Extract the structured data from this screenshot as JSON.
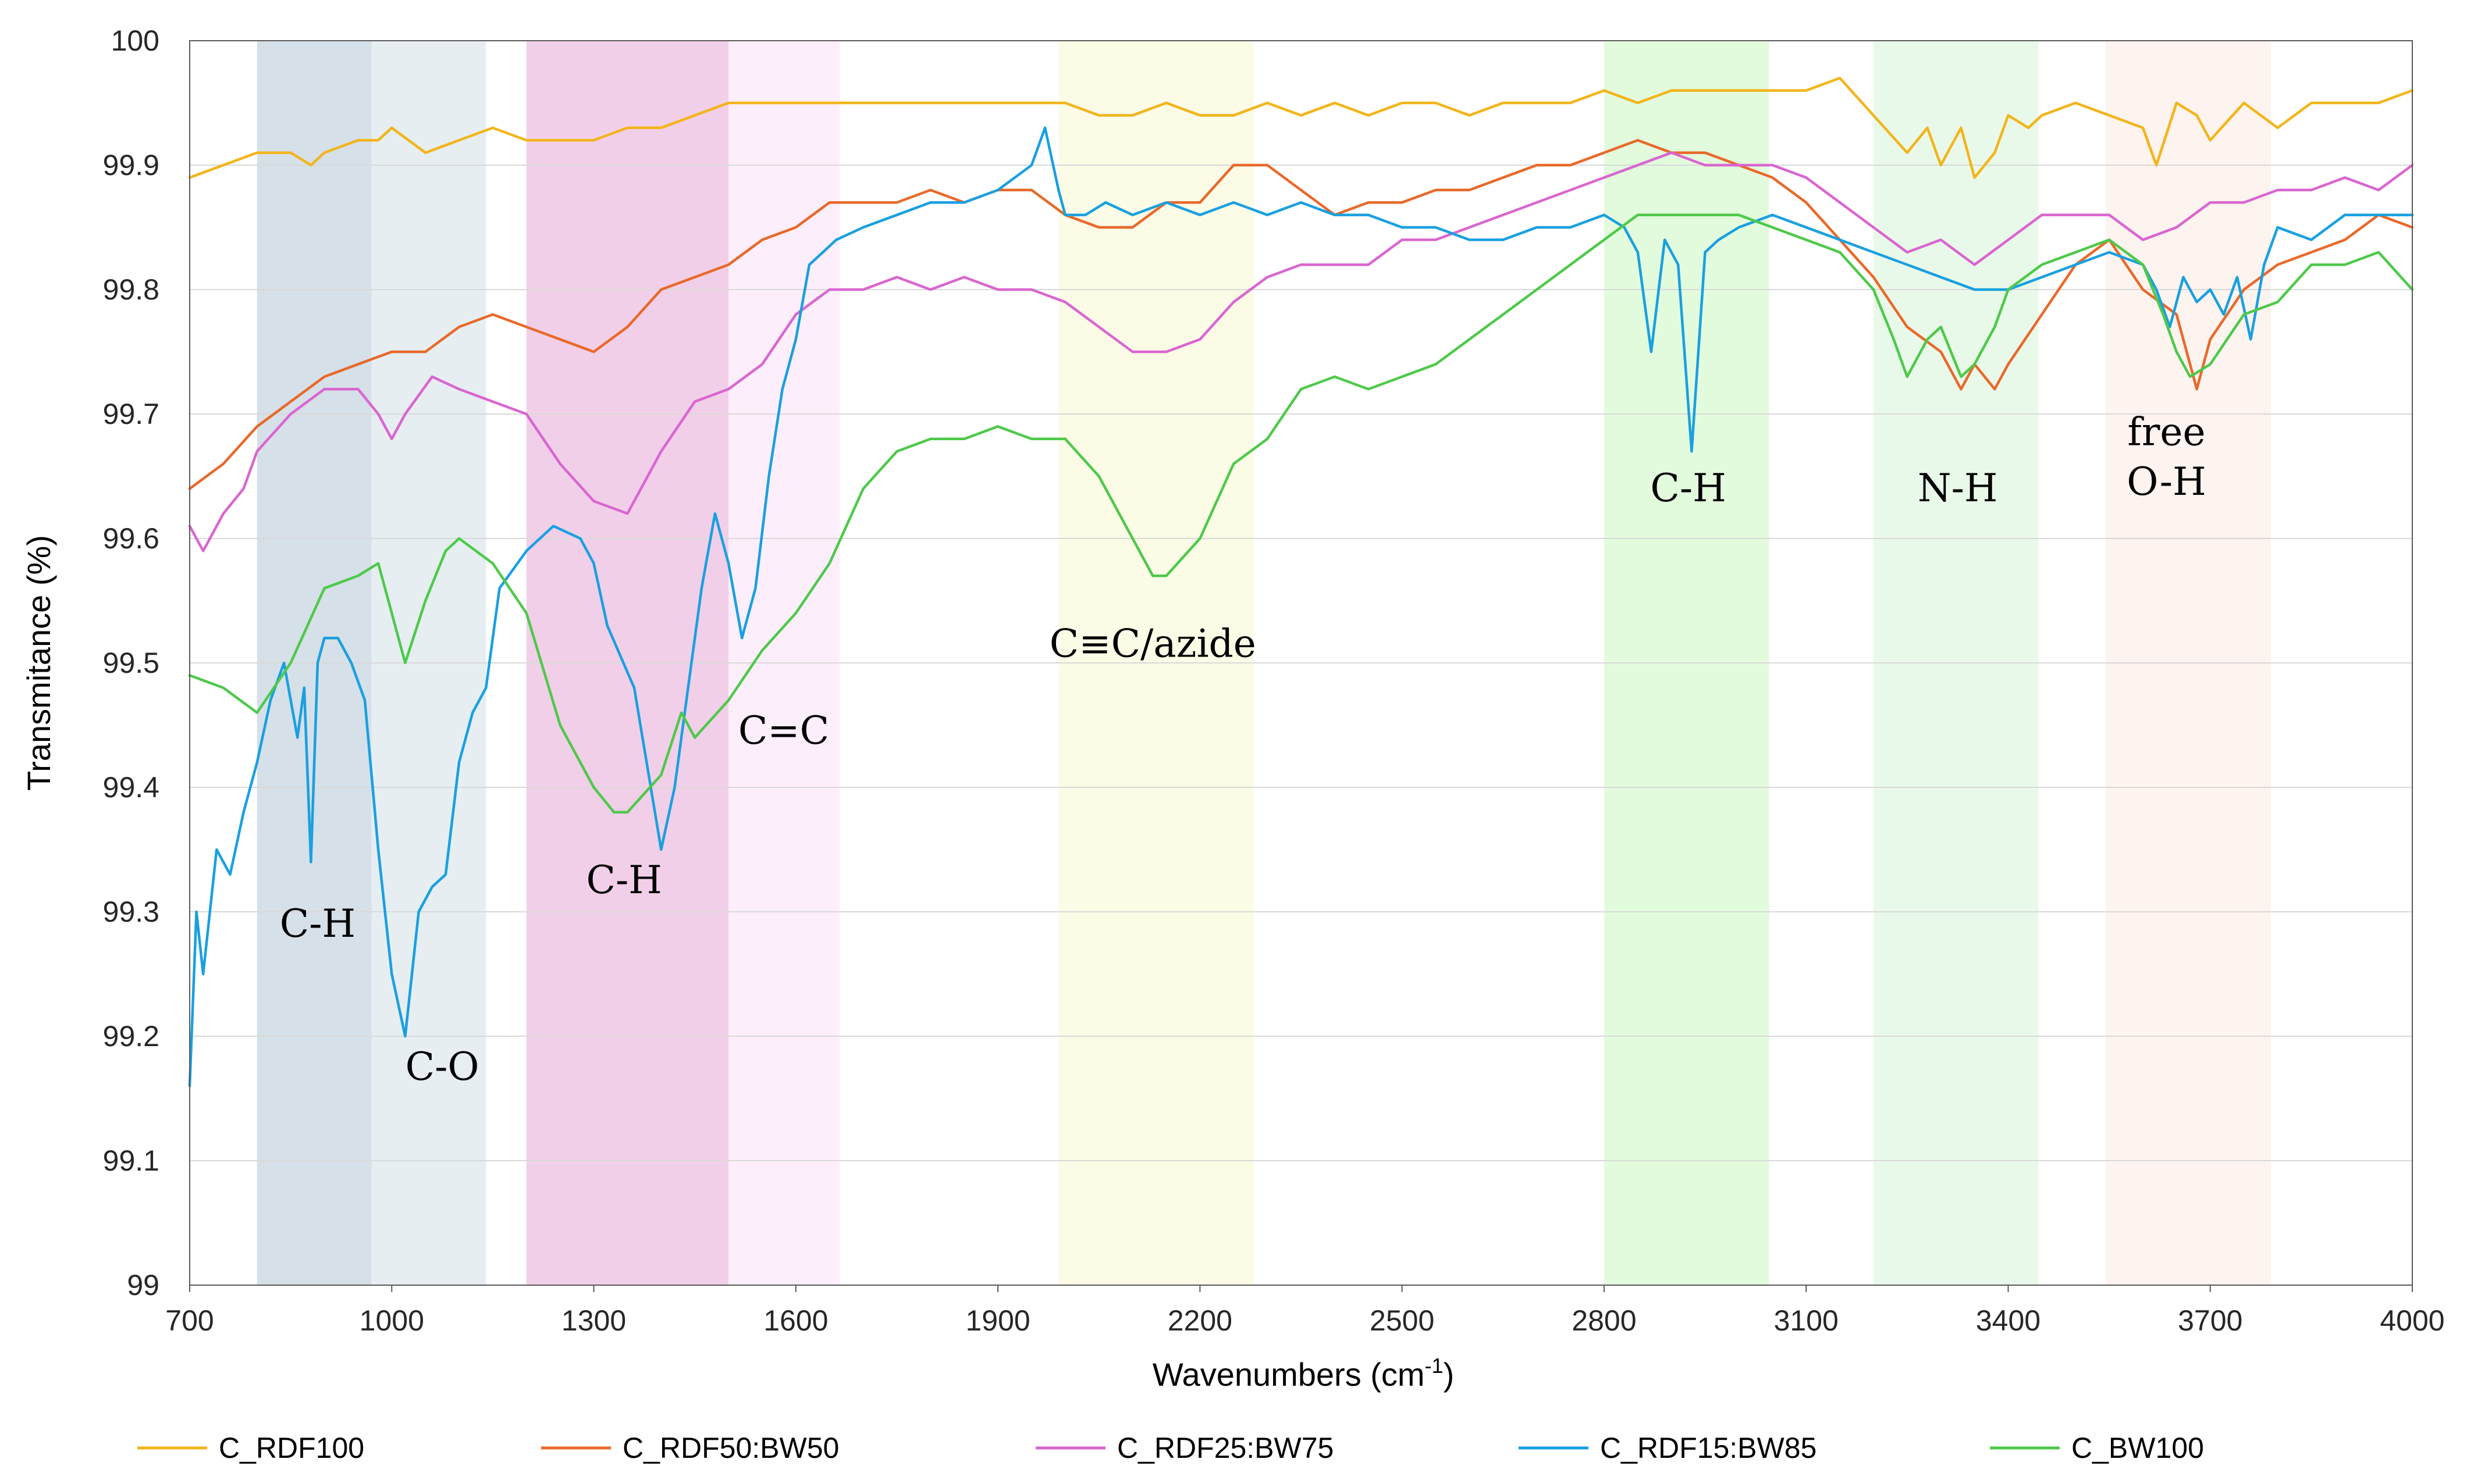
{
  "chart_data": {
    "type": "line",
    "title": "",
    "xlabel": "Wavenumbers (cm",
    "xlabel_sup": "-1",
    "xlabel_close": ")",
    "ylabel": "Transmitance (%)",
    "xlim": [
      700,
      4000
    ],
    "ylim": [
      99,
      100
    ],
    "x_ticks": [
      700,
      1000,
      1300,
      1600,
      1900,
      2200,
      2500,
      2800,
      3100,
      3400,
      3700,
      4000
    ],
    "x_tick_labels": [
      "700",
      "1000",
      "1300",
      "1600",
      "1900",
      "2200",
      "2500",
      "2800",
      "3100",
      "3400",
      "3700",
      "4000"
    ],
    "y_ticks": [
      99,
      99.1,
      99.2,
      99.3,
      99.4,
      99.5,
      99.6,
      99.7,
      99.8,
      99.9,
      100
    ],
    "y_tick_labels": [
      "99",
      "99.1",
      "99.2",
      "99.3",
      "99.4",
      "99.5",
      "99.6",
      "99.7",
      "99.8",
      "99.9",
      "100"
    ],
    "legend_position": "bottom",
    "bands": [
      {
        "x0": 800,
        "x1": 970,
        "color": "#d6e0e8"
      },
      {
        "x0": 970,
        "x1": 1140,
        "color": "#e6eef2"
      },
      {
        "x0": 1200,
        "x1": 1500,
        "color": "#f2cfe8"
      },
      {
        "x0": 1500,
        "x1": 1665,
        "color": "#fdeefb"
      },
      {
        "x0": 1990,
        "x1": 2280,
        "color": "#fbfbe6"
      },
      {
        "x0": 2800,
        "x1": 3045,
        "color": "#e3fbdd"
      },
      {
        "x0": 3200,
        "x1": 3445,
        "color": "#e9f9e9"
      },
      {
        "x0": 3545,
        "x1": 3790,
        "color": "#fdf3ef"
      }
    ],
    "annotations": [
      {
        "text": "C-H",
        "x": 890,
        "y": 99.28
      },
      {
        "text": "C-O",
        "x": 1075,
        "y": 99.165
      },
      {
        "text": "C-H",
        "x": 1345,
        "y": 99.315
      },
      {
        "text": "C=C",
        "x": 1582,
        "y": 99.435
      },
      {
        "text": "C≡C/azide",
        "x": 2130,
        "y": 99.505
      },
      {
        "text": "C-H",
        "x": 2925,
        "y": 99.63
      },
      {
        "text": "N-H",
        "x": 3325,
        "y": 99.63
      },
      {
        "text": "free",
        "x": 3635,
        "y": 99.675
      },
      {
        "text": "O-H",
        "x": 3635,
        "y": 99.635
      }
    ],
    "series": [
      {
        "name": "C_RDF100",
        "color": "#f2b51b",
        "x": [
          700,
          750,
          800,
          850,
          880,
          900,
          950,
          980,
          1000,
          1050,
          1100,
          1150,
          1200,
          1250,
          1300,
          1350,
          1400,
          1450,
          1500,
          1550,
          1600,
          1650,
          1700,
          1750,
          1800,
          1850,
          1900,
          1950,
          2000,
          2050,
          2100,
          2150,
          2200,
          2250,
          2300,
          2350,
          2400,
          2450,
          2500,
          2550,
          2600,
          2650,
          2700,
          2750,
          2800,
          2850,
          2900,
          2950,
          3000,
          3050,
          3100,
          3150,
          3200,
          3250,
          3280,
          3300,
          3330,
          3350,
          3380,
          3400,
          3430,
          3450,
          3500,
          3550,
          3600,
          3620,
          3650,
          3680,
          3700,
          3750,
          3800,
          3850,
          3900,
          3950,
          4000
        ],
        "values": [
          99.89,
          99.9,
          99.91,
          99.91,
          99.9,
          99.91,
          99.92,
          99.92,
          99.93,
          99.91,
          99.92,
          99.93,
          99.92,
          99.92,
          99.92,
          99.93,
          99.93,
          99.94,
          99.95,
          99.95,
          99.95,
          99.95,
          99.95,
          99.95,
          99.95,
          99.95,
          99.95,
          99.95,
          99.95,
          99.94,
          99.94,
          99.95,
          99.94,
          99.94,
          99.95,
          99.94,
          99.95,
          99.94,
          99.95,
          99.95,
          99.94,
          99.95,
          99.95,
          99.95,
          99.96,
          99.95,
          99.96,
          99.96,
          99.96,
          99.96,
          99.96,
          99.97,
          99.94,
          99.91,
          99.93,
          99.9,
          99.93,
          99.89,
          99.91,
          99.94,
          99.93,
          99.94,
          99.95,
          99.94,
          99.93,
          99.9,
          99.95,
          99.94,
          99.92,
          99.95,
          99.93,
          99.95,
          99.95,
          99.95,
          99.96
        ]
      },
      {
        "name": "C_RDF50:BW50",
        "color": "#e8692a",
        "x": [
          700,
          750,
          800,
          850,
          900,
          950,
          1000,
          1050,
          1100,
          1150,
          1200,
          1250,
          1300,
          1350,
          1400,
          1450,
          1500,
          1550,
          1600,
          1650,
          1700,
          1750,
          1800,
          1850,
          1900,
          1950,
          2000,
          2050,
          2100,
          2150,
          2200,
          2250,
          2300,
          2350,
          2400,
          2450,
          2500,
          2550,
          2600,
          2650,
          2700,
          2750,
          2800,
          2850,
          2900,
          2950,
          3000,
          3050,
          3100,
          3150,
          3200,
          3250,
          3300,
          3330,
          3350,
          3380,
          3400,
          3450,
          3500,
          3550,
          3600,
          3650,
          3680,
          3700,
          3750,
          3800,
          3850,
          3900,
          3950,
          4000
        ],
        "values": [
          99.64,
          99.66,
          99.69,
          99.71,
          99.73,
          99.74,
          99.75,
          99.75,
          99.77,
          99.78,
          99.77,
          99.76,
          99.75,
          99.77,
          99.8,
          99.81,
          99.82,
          99.84,
          99.85,
          99.87,
          99.87,
          99.87,
          99.88,
          99.87,
          99.88,
          99.88,
          99.86,
          99.85,
          99.85,
          99.87,
          99.87,
          99.9,
          99.9,
          99.88,
          99.86,
          99.87,
          99.87,
          99.88,
          99.88,
          99.89,
          99.9,
          99.9,
          99.91,
          99.92,
          99.91,
          99.91,
          99.9,
          99.89,
          99.87,
          99.84,
          99.81,
          99.77,
          99.75,
          99.72,
          99.74,
          99.72,
          99.74,
          99.78,
          99.82,
          99.84,
          99.8,
          99.78,
          99.72,
          99.76,
          99.8,
          99.82,
          99.83,
          99.84,
          99.86,
          99.85
        ]
      },
      {
        "name": "C_RDF25:BW75",
        "color": "#d966d0",
        "x": [
          700,
          720,
          750,
          780,
          800,
          850,
          900,
          950,
          980,
          1000,
          1020,
          1060,
          1100,
          1150,
          1200,
          1250,
          1300,
          1350,
          1400,
          1450,
          1500,
          1550,
          1600,
          1650,
          1700,
          1750,
          1800,
          1850,
          1900,
          1950,
          2000,
          2050,
          2100,
          2150,
          2200,
          2250,
          2300,
          2350,
          2400,
          2450,
          2500,
          2550,
          2600,
          2650,
          2700,
          2750,
          2800,
          2850,
          2900,
          2950,
          3000,
          3050,
          3100,
          3150,
          3200,
          3250,
          3300,
          3350,
          3400,
          3450,
          3500,
          3550,
          3600,
          3650,
          3700,
          3750,
          3800,
          3850,
          3900,
          3950,
          4000
        ],
        "values": [
          99.61,
          99.59,
          99.62,
          99.64,
          99.67,
          99.7,
          99.72,
          99.72,
          99.7,
          99.68,
          99.7,
          99.73,
          99.72,
          99.71,
          99.7,
          99.66,
          99.63,
          99.62,
          99.67,
          99.71,
          99.72,
          99.74,
          99.78,
          99.8,
          99.8,
          99.81,
          99.8,
          99.81,
          99.8,
          99.8,
          99.79,
          99.77,
          99.75,
          99.75,
          99.76,
          99.79,
          99.81,
          99.82,
          99.82,
          99.82,
          99.84,
          99.84,
          99.85,
          99.86,
          99.87,
          99.88,
          99.89,
          99.9,
          99.91,
          99.9,
          99.9,
          99.9,
          99.89,
          99.87,
          99.85,
          99.83,
          99.84,
          99.82,
          99.84,
          99.86,
          99.86,
          99.86,
          99.84,
          99.85,
          99.87,
          99.87,
          99.88,
          99.88,
          99.89,
          99.88,
          99.9
        ]
      },
      {
        "name": "C_RDF15:BW85",
        "color": "#19a0e0",
        "x": [
          700,
          710,
          720,
          740,
          760,
          780,
          800,
          820,
          840,
          860,
          870,
          880,
          890,
          900,
          910,
          920,
          940,
          960,
          980,
          1000,
          1020,
          1040,
          1060,
          1080,
          1100,
          1120,
          1140,
          1160,
          1200,
          1240,
          1280,
          1300,
          1320,
          1360,
          1400,
          1420,
          1440,
          1460,
          1480,
          1500,
          1520,
          1540,
          1560,
          1580,
          1600,
          1620,
          1660,
          1700,
          1750,
          1800,
          1850,
          1900,
          1950,
          1970,
          1990,
          2000,
          2030,
          2060,
          2100,
          2150,
          2200,
          2250,
          2300,
          2350,
          2400,
          2450,
          2500,
          2550,
          2600,
          2650,
          2700,
          2750,
          2800,
          2830,
          2850,
          2870,
          2890,
          2910,
          2930,
          2950,
          2970,
          3000,
          3050,
          3100,
          3150,
          3200,
          3250,
          3300,
          3350,
          3400,
          3450,
          3500,
          3550,
          3600,
          3620,
          3640,
          3660,
          3680,
          3700,
          3720,
          3740,
          3760,
          3780,
          3800,
          3850,
          3900,
          3950,
          4000
        ],
        "values": [
          99.16,
          99.3,
          99.25,
          99.35,
          99.33,
          99.38,
          99.42,
          99.47,
          99.5,
          99.44,
          99.48,
          99.34,
          99.5,
          99.52,
          99.52,
          99.52,
          99.5,
          99.47,
          99.35,
          99.25,
          99.2,
          99.3,
          99.32,
          99.33,
          99.42,
          99.46,
          99.48,
          99.56,
          99.59,
          99.61,
          99.6,
          99.58,
          99.53,
          99.48,
          99.35,
          99.4,
          99.48,
          99.56,
          99.62,
          99.58,
          99.52,
          99.56,
          99.65,
          99.72,
          99.76,
          99.82,
          99.84,
          99.85,
          99.86,
          99.87,
          99.87,
          99.88,
          99.9,
          99.93,
          99.88,
          99.86,
          99.86,
          99.87,
          99.86,
          99.87,
          99.86,
          99.87,
          99.86,
          99.87,
          99.86,
          99.86,
          99.85,
          99.85,
          99.84,
          99.84,
          99.85,
          99.85,
          99.86,
          99.85,
          99.83,
          99.75,
          99.84,
          99.82,
          99.67,
          99.83,
          99.84,
          99.85,
          99.86,
          99.85,
          99.84,
          99.83,
          99.82,
          99.81,
          99.8,
          99.8,
          99.81,
          99.82,
          99.83,
          99.82,
          99.8,
          99.77,
          99.81,
          99.79,
          99.8,
          99.78,
          99.81,
          99.76,
          99.82,
          99.85,
          99.84,
          99.86,
          99.86,
          99.86
        ]
      },
      {
        "name": "C_BW100",
        "color": "#4ec94a",
        "x": [
          700,
          750,
          800,
          850,
          900,
          950,
          980,
          1000,
          1020,
          1050,
          1080,
          1100,
          1150,
          1200,
          1250,
          1300,
          1330,
          1350,
          1400,
          1430,
          1450,
          1500,
          1550,
          1600,
          1650,
          1700,
          1750,
          1800,
          1850,
          1900,
          1950,
          2000,
          2050,
          2100,
          2130,
          2150,
          2200,
          2250,
          2300,
          2350,
          2400,
          2450,
          2500,
          2550,
          2600,
          2650,
          2700,
          2750,
          2800,
          2850,
          2900,
          2950,
          3000,
          3050,
          3100,
          3150,
          3200,
          3230,
          3250,
          3280,
          3300,
          3330,
          3350,
          3380,
          3400,
          3450,
          3500,
          3550,
          3600,
          3630,
          3650,
          3670,
          3700,
          3750,
          3800,
          3850,
          3900,
          3950,
          4000
        ],
        "values": [
          99.49,
          99.48,
          99.46,
          99.5,
          99.56,
          99.57,
          99.58,
          99.54,
          99.5,
          99.55,
          99.59,
          99.6,
          99.58,
          99.54,
          99.45,
          99.4,
          99.38,
          99.38,
          99.41,
          99.46,
          99.44,
          99.47,
          99.51,
          99.54,
          99.58,
          99.64,
          99.67,
          99.68,
          99.68,
          99.69,
          99.68,
          99.68,
          99.65,
          99.6,
          99.57,
          99.57,
          99.6,
          99.66,
          99.68,
          99.72,
          99.73,
          99.72,
          99.73,
          99.74,
          99.76,
          99.78,
          99.8,
          99.82,
          99.84,
          99.86,
          99.86,
          99.86,
          99.86,
          99.85,
          99.84,
          99.83,
          99.8,
          99.76,
          99.73,
          99.76,
          99.77,
          99.73,
          99.74,
          99.77,
          99.8,
          99.82,
          99.83,
          99.84,
          99.82,
          99.78,
          99.75,
          99.73,
          99.74,
          99.78,
          99.79,
          99.82,
          99.82,
          99.83,
          99.8
        ]
      }
    ]
  }
}
